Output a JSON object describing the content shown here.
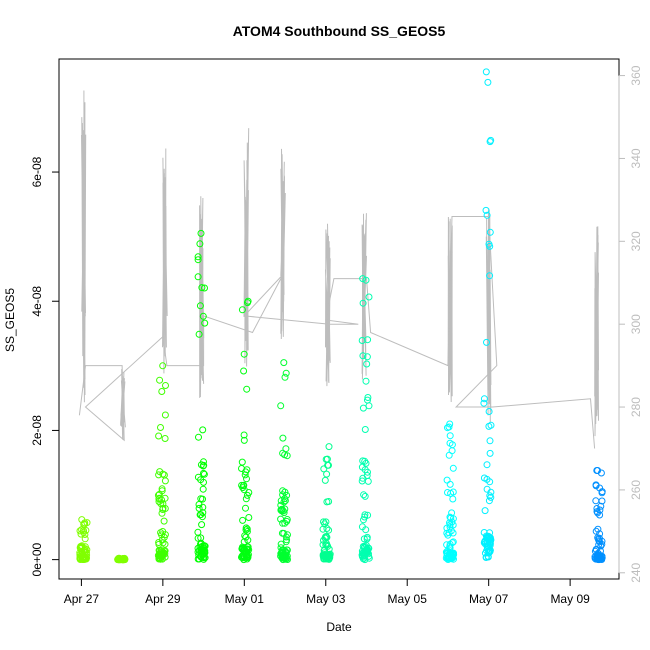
{
  "chart_data": {
    "type": "scatter",
    "title": "ATOM4 Southbound SS_GEOS5",
    "xlabel": "Date",
    "ylabel": "SS_GEOS5",
    "x_ticks": [
      "Apr 27",
      "Apr 29",
      "May 01",
      "May 03",
      "May 05",
      "May 07",
      "May 09"
    ],
    "x_tick_days": [
      0,
      2,
      4,
      6,
      8,
      10,
      12
    ],
    "xlim_days": [
      -0.55,
      13.2
    ],
    "ylim": [
      -3e-09,
      7.75e-08
    ],
    "y_ticks": [
      0,
      2e-08,
      4e-08,
      6e-08
    ],
    "y_tick_labels": [
      "0e+00",
      "2e-08",
      "4e-08",
      "6e-08"
    ],
    "y2_ticks": [
      240,
      260,
      280,
      300,
      320,
      340,
      360
    ],
    "y2_lim": [
      238.5,
      364
    ],
    "grid": false,
    "legend": "none",
    "point_color_scale": [
      "#80ff00",
      "#00ff00",
      "#00ff80",
      "#00ffff",
      "#0080ff"
    ],
    "line_color": "#bdbdbd",
    "scatter_clusters": [
      {
        "day": 0.05,
        "max": 6.2e-09,
        "color": "#80ff00"
      },
      {
        "day": 0.98,
        "max": 2e-10,
        "color": "#80ff00"
      },
      {
        "day": 1.98,
        "max": 3e-08,
        "color": "#40ff00"
      },
      {
        "day": 2.95,
        "max": 5.05e-08,
        "color": "#00ff00"
      },
      {
        "day": 4.02,
        "max": 4e-08,
        "color": "#00ff10"
      },
      {
        "day": 4.98,
        "max": 3.05e-08,
        "color": "#00ff30"
      },
      {
        "day": 6.02,
        "max": 1.75e-08,
        "color": "#00ff90"
      },
      {
        "day": 6.98,
        "max": 4.35e-08,
        "color": "#00ffb0"
      },
      {
        "day": 9.05,
        "max": 2.1e-08,
        "color": "#00ffff"
      },
      {
        "day": 9.97,
        "max": 7.55e-08,
        "color": "#00f0ff"
      },
      {
        "day": 12.7,
        "max": 1.38e-08,
        "color": "#0090ff"
      }
    ],
    "line_bursts": [
      {
        "day": 0.05,
        "low": 278,
        "high": 359
      },
      {
        "day": 1.02,
        "low": 272,
        "high": 290
      },
      {
        "day": 2.05,
        "low": 288,
        "high": 345
      },
      {
        "day": 2.95,
        "low": 280,
        "high": 331
      },
      {
        "day": 4.05,
        "low": 288,
        "high": 348
      },
      {
        "day": 4.95,
        "low": 295,
        "high": 343
      },
      {
        "day": 6.05,
        "low": 285,
        "high": 325
      },
      {
        "day": 6.95,
        "low": 286,
        "high": 328
      },
      {
        "day": 9.05,
        "low": 276,
        "high": 326
      },
      {
        "day": 10.0,
        "low": 276,
        "high": 328
      },
      {
        "day": 12.65,
        "low": 270,
        "high": 324
      }
    ],
    "line_path": [
      [
        -0.05,
        278
      ],
      [
        0.1,
        290
      ],
      [
        1.0,
        290
      ],
      [
        1.05,
        272
      ],
      [
        0.1,
        280
      ],
      [
        2.0,
        297
      ],
      [
        2.1,
        290
      ],
      [
        3.0,
        290
      ],
      [
        3.0,
        302
      ],
      [
        4.2,
        298
      ],
      [
        4.95,
        312
      ],
      [
        4.0,
        302
      ],
      [
        6.1,
        300
      ],
      [
        6.8,
        300
      ],
      [
        6.0,
        301
      ],
      [
        6.2,
        311
      ],
      [
        7.0,
        311
      ],
      [
        7.1,
        298
      ],
      [
        9.0,
        290
      ],
      [
        9.1,
        326
      ],
      [
        10.0,
        326
      ],
      [
        10.2,
        290
      ],
      [
        9.2,
        280
      ],
      [
        10.1,
        280
      ],
      [
        12.5,
        282
      ],
      [
        12.6,
        270
      ]
    ]
  }
}
